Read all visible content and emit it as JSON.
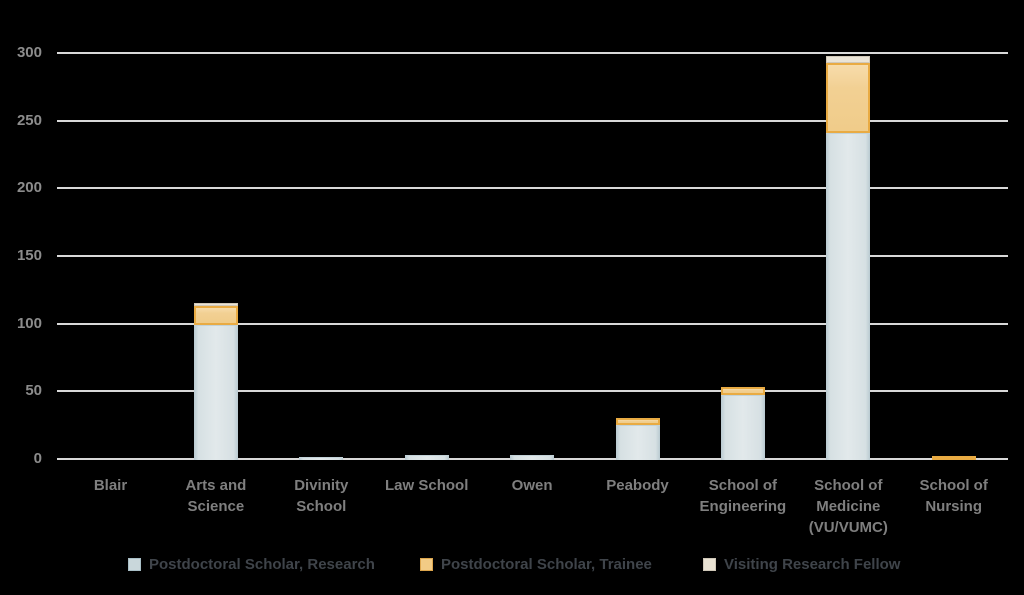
{
  "chart_data": {
    "type": "bar",
    "stacked": true,
    "title": "",
    "categories": [
      {
        "label": "Blair",
        "lines": [
          "Blair"
        ]
      },
      {
        "label": "Arts and Science",
        "lines": [
          "Arts and",
          "Science"
        ]
      },
      {
        "label": "Divinity School",
        "lines": [
          "Divinity",
          "School"
        ]
      },
      {
        "label": "Law School",
        "lines": [
          "Law School"
        ]
      },
      {
        "label": "Owen",
        "lines": [
          "Owen"
        ]
      },
      {
        "label": "Peabody",
        "lines": [
          "Peabody"
        ]
      },
      {
        "label": "School of Engineering",
        "lines": [
          "School of",
          "Engineering"
        ]
      },
      {
        "label": "School of Medicine (VU/VUMC)",
        "lines": [
          "School of",
          "Medicine",
          "(VU/VUMC)"
        ]
      },
      {
        "label": "School of Nursing",
        "lines": [
          "School of",
          "Nursing"
        ]
      }
    ],
    "series": [
      {
        "name": "Postdoctoral Scholar, Research",
        "color": "#d9e2e5",
        "values": [
          0,
          100,
          2,
          4,
          4,
          26,
          48,
          242,
          0
        ]
      },
      {
        "name": "Postdoctoral Scholar, Trainee",
        "color": "#f1cd8d",
        "values": [
          0,
          14,
          0,
          0,
          0,
          5,
          6,
          52,
          3
        ]
      },
      {
        "name": "Visiting Research Fellow",
        "color": "#eae4d7",
        "values": [
          0,
          2,
          0,
          0,
          0,
          0,
          0,
          5,
          0
        ]
      }
    ],
    "y_axis": {
      "min": 0,
      "max": 300,
      "step": 50,
      "ticks": [
        "0",
        "50",
        "100",
        "150",
        "200",
        "250",
        "300"
      ]
    },
    "grid": true,
    "legend_position": "bottom",
    "background_color": "#000000",
    "gridline_color": "#d9d9d9",
    "axis_label_color": "#8c8c8c",
    "legend_text_color": "#3f444a"
  }
}
